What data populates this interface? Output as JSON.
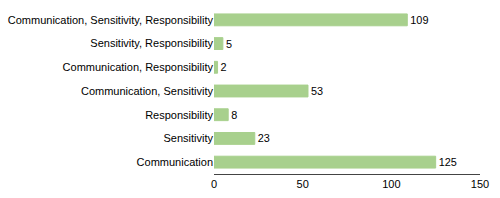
{
  "chart_data": {
    "type": "bar",
    "orientation": "horizontal",
    "categories": [
      "Communication",
      "Sensitivity",
      "Responsibility",
      "Communication, Sensitivity",
      "Communication, Responsibility",
      "Sensitivity, Responsibility",
      "Communication, Sensitivity, Responsibility"
    ],
    "values": [
      125,
      23,
      8,
      53,
      2,
      5,
      109
    ],
    "color": "#a8d08d",
    "xlim": [
      0,
      150
    ],
    "xticks": [
      0,
      50,
      100,
      150
    ],
    "data_labels": true,
    "grid": false
  }
}
